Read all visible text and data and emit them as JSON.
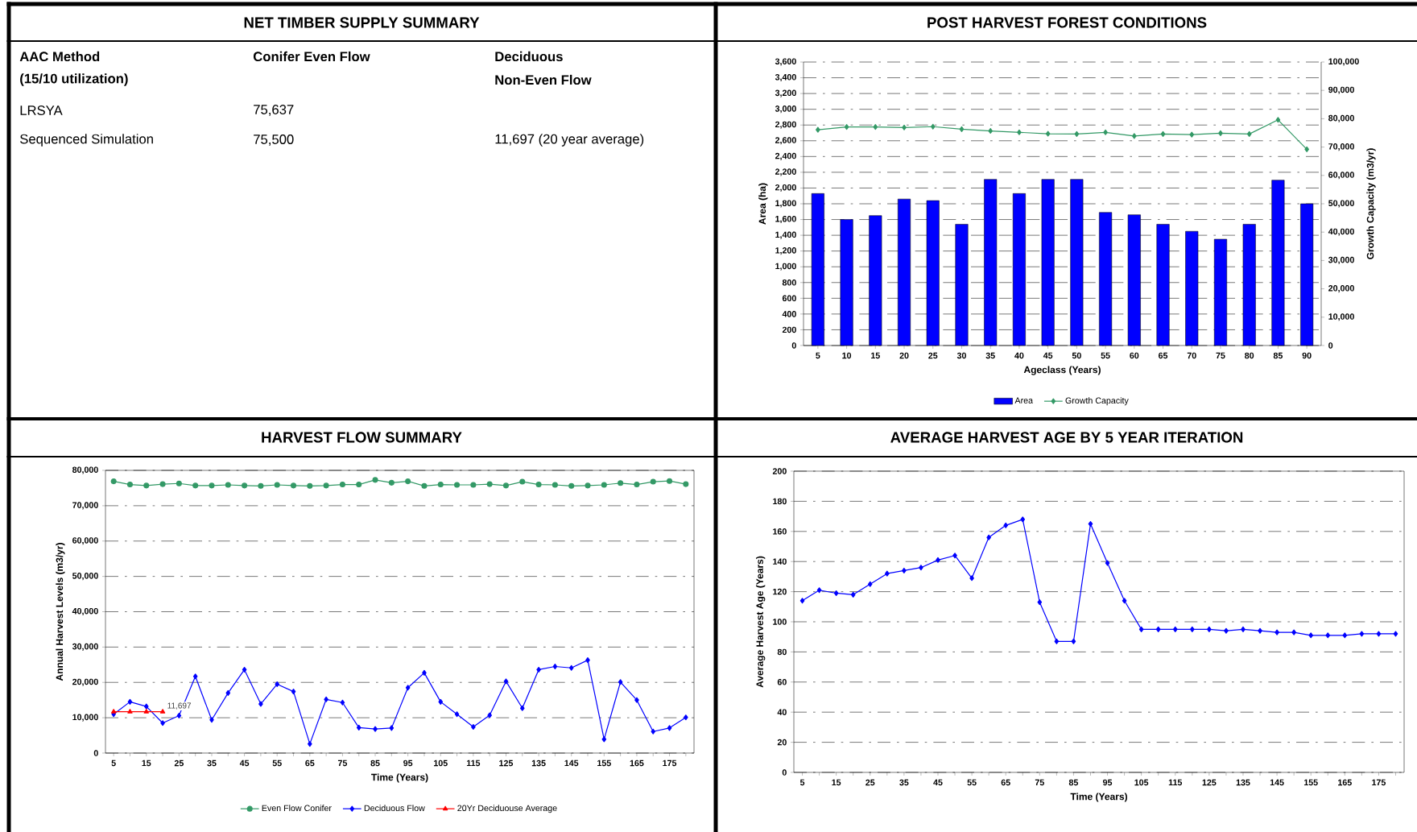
{
  "chart_data": [
    {
      "type": "other",
      "title": "NET TIMBER SUPPLY SUMMARY",
      "annotations": [
        "AAC Method",
        "Conifer Even Flow",
        "Deciduous",
        "(15/10 utilization)",
        "Non-Even Flow",
        "LRSYA",
        "75,637",
        "Sequenced Simulation",
        "75,500",
        "11,697 (20 year average)"
      ]
    },
    {
      "type": "bar",
      "title": "POST HARVEST FOREST CONDITIONS",
      "xlabel": "Ageclass (Years)",
      "ylabel": "Area (ha)",
      "y2label": "Growth Capacity (m3/yr)",
      "categories": [
        "5",
        "10",
        "15",
        "20",
        "25",
        "30",
        "35",
        "40",
        "45",
        "50",
        "55",
        "60",
        "65",
        "70",
        "75",
        "80",
        "85",
        "90"
      ],
      "series": [
        {
          "name": "Area",
          "color": "#0000ff",
          "values": [
            1930,
            1600,
            1650,
            1860,
            1840,
            1540,
            2110,
            1930,
            2110,
            2110,
            1690,
            1660,
            1540,
            1450,
            1350,
            1540,
            2100,
            1800
          ]
        },
        {
          "name": "Growth Capacity",
          "type": "line",
          "axis": "y2",
          "marker": "diamond",
          "color": "#339966",
          "values": [
            76100,
            77100,
            77100,
            76900,
            77200,
            76300,
            75700,
            75200,
            74700,
            74600,
            75200,
            73900,
            74600,
            74400,
            74900,
            74600,
            79600,
            69200
          ]
        }
      ],
      "ylim": [
        0,
        3600
      ],
      "yticks": [
        0,
        200,
        400,
        600,
        800,
        {
          "value": 1000,
          "label": "1,000"
        },
        {
          "value": 1200,
          "label": "1,200"
        },
        {
          "value": 1400,
          "label": "1,400"
        },
        {
          "value": 1600,
          "label": "1,600"
        },
        {
          "value": 1800,
          "label": "1,800"
        },
        {
          "value": 2000,
          "label": "2,000"
        },
        {
          "value": 2200,
          "label": "2,200"
        },
        {
          "value": 2400,
          "label": "2,400"
        },
        {
          "value": 2600,
          "label": "2,600"
        },
        {
          "value": 2800,
          "label": "2,800"
        },
        {
          "value": 3000,
          "label": "3,000"
        },
        {
          "value": 3200,
          "label": "3,200"
        },
        {
          "value": 3400,
          "label": "3,400"
        },
        {
          "value": 3600,
          "label": "3,600"
        }
      ],
      "y2lim": [
        0,
        100000
      ],
      "y2ticks": [
        0,
        {
          "value": 10000,
          "label": "10,000"
        },
        {
          "value": 20000,
          "label": "20,000"
        },
        {
          "value": 30000,
          "label": "30,000"
        },
        {
          "value": 40000,
          "label": "40,000"
        },
        {
          "value": 50000,
          "label": "50,000"
        },
        {
          "value": 60000,
          "label": "60,000"
        },
        {
          "value": 70000,
          "label": "70,000"
        },
        {
          "value": 80000,
          "label": "80,000"
        },
        {
          "value": 90000,
          "label": "90,000"
        },
        {
          "value": 100000,
          "label": "100,000"
        }
      ],
      "grid": "y",
      "legend": "bottom"
    },
    {
      "type": "line",
      "title": "HARVEST FLOW SUMMARY",
      "xlabel": "Time (Years)",
      "ylabel": "Annual Harvest Levels (m3/yr)",
      "categories": [
        "5",
        null,
        "15",
        null,
        "25",
        null,
        "35",
        null,
        "45",
        null,
        "55",
        null,
        "65",
        null,
        "75",
        null,
        "85",
        null,
        "95",
        null,
        "105",
        null,
        "115",
        null,
        "125",
        null,
        "135",
        null,
        "145",
        null,
        "155",
        null,
        "165",
        null,
        "175",
        null
      ],
      "series": [
        {
          "name": "Even Flow Conifer",
          "color": "#339966",
          "marker": "circle",
          "values": [
            76900,
            76000,
            75700,
            76100,
            76300,
            75700,
            75700,
            75900,
            75700,
            75600,
            75900,
            75700,
            75600,
            75700,
            76000,
            76000,
            77300,
            76500,
            76900,
            75600,
            76000,
            75900,
            75900,
            76100,
            75700,
            76800,
            76000,
            75900,
            75600,
            75700,
            75900,
            76400,
            76000,
            76800,
            77000,
            76100
          ]
        },
        {
          "name": "Deciduous Flow",
          "color": "#0000ff",
          "marker": "diamond",
          "values": [
            11000,
            14500,
            13200,
            8500,
            10600,
            21700,
            9400,
            17000,
            23600,
            13900,
            19500,
            17400,
            2600,
            15200,
            14300,
            7200,
            6800,
            7100,
            18500,
            22700,
            14500,
            11000,
            7400,
            10700,
            20300,
            12700,
            23600,
            24500,
            24100,
            26300,
            3900,
            20100,
            15000,
            6100,
            7100,
            10100
          ]
        },
        {
          "name": "20Yr Deciduouse Average",
          "color": "#ff0000",
          "marker": "triangle",
          "values": [
            11697,
            11697,
            11697,
            11697,
            null,
            null,
            null,
            null,
            null,
            null,
            null,
            null,
            null,
            null,
            null,
            null,
            null,
            null,
            null,
            null,
            null,
            null,
            null,
            null,
            null,
            null,
            null,
            null,
            null,
            null,
            null,
            null,
            null,
            null,
            null,
            null
          ],
          "value_labels": [
            null,
            null,
            null,
            "11,697",
            null,
            null,
            null,
            null,
            null,
            null,
            null,
            null,
            null,
            null,
            null,
            null,
            null,
            null,
            null,
            null,
            null,
            null,
            null,
            null,
            null,
            null,
            null,
            null,
            null,
            null,
            null,
            null,
            null,
            null,
            null,
            null
          ]
        }
      ],
      "ylim": [
        0,
        80000
      ],
      "yticks": [
        0,
        {
          "value": 10000,
          "label": "10,000"
        },
        {
          "value": 20000,
          "label": "20,000"
        },
        {
          "value": 30000,
          "label": "30,000"
        },
        {
          "value": 40000,
          "label": "40,000"
        },
        {
          "value": 50000,
          "label": "50,000"
        },
        {
          "value": 60000,
          "label": "60,000"
        },
        {
          "value": 70000,
          "label": "70,000"
        },
        {
          "value": 80000,
          "label": "80,000"
        }
      ],
      "grid": "y",
      "legend": "bottom"
    },
    {
      "type": "line",
      "title": "AVERAGE HARVEST AGE BY 5 YEAR ITERATION",
      "xlabel": "Time (Years)",
      "ylabel": "Average Harvest Age (Years)",
      "categories": [
        "5",
        null,
        "15",
        null,
        "25",
        null,
        "35",
        null,
        "45",
        null,
        "55",
        null,
        "65",
        null,
        "75",
        null,
        "85",
        null,
        "95",
        null,
        "105",
        null,
        "115",
        null,
        "125",
        null,
        "135",
        null,
        "145",
        null,
        "155",
        null,
        "165",
        null,
        "175",
        null
      ],
      "color": "#0000ff",
      "marker": "diamond",
      "values": [
        114,
        121,
        119,
        118,
        125,
        132,
        134,
        136,
        141,
        144,
        129,
        156,
        164,
        168,
        113,
        87,
        87,
        165,
        139,
        114,
        95,
        95,
        95,
        95,
        95,
        94,
        95,
        94,
        93,
        93,
        91,
        91,
        91,
        92,
        92,
        92
      ],
      "ylim": [
        0,
        200
      ],
      "yticks": [
        0,
        20,
        40,
        60,
        80,
        100,
        120,
        140,
        160,
        180,
        200
      ],
      "grid": "y"
    }
  ]
}
